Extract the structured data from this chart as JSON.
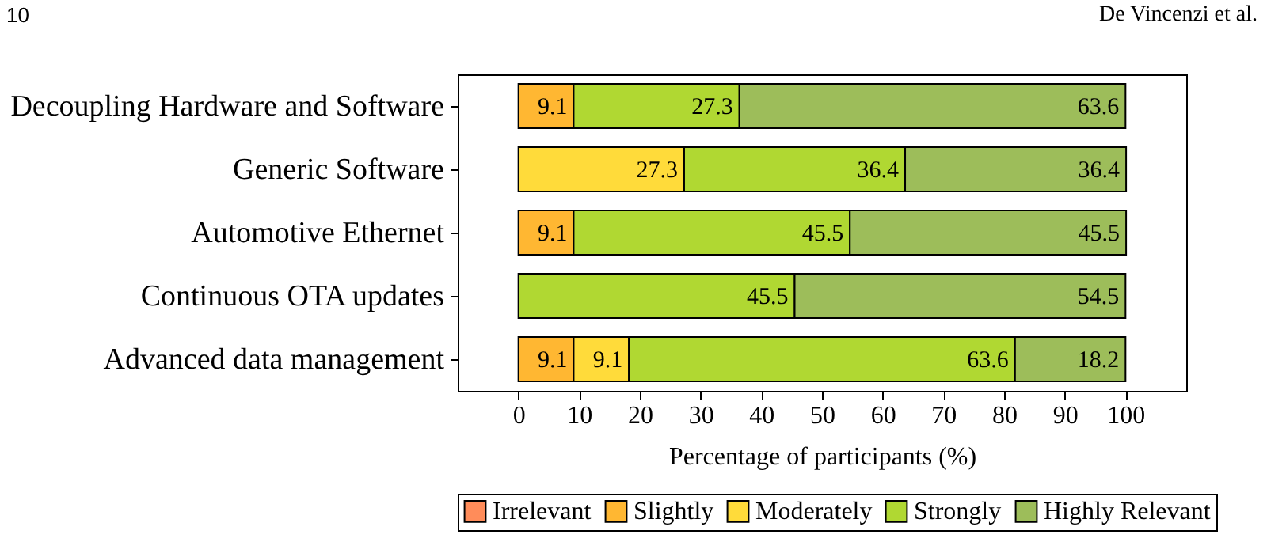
{
  "chart_data": {
    "type": "bar",
    "orientation": "horizontal",
    "stacked": true,
    "categories": [
      "Decoupling Hardware and Software",
      "Generic Software",
      "Automotive Ethernet",
      "Continuous OTA updates",
      "Advanced data management"
    ],
    "series": [
      {
        "name": "Irrelevant",
        "color": "#ff8c5a",
        "values": [
          null,
          null,
          null,
          null,
          null
        ],
        "value_labels": [
          null,
          null,
          null,
          null,
          null
        ]
      },
      {
        "name": "Slightly",
        "color": "#ffb732",
        "values": [
          9.1,
          null,
          9.1,
          null,
          9.1
        ],
        "value_labels": [
          "9.1",
          null,
          "9.1",
          null,
          "9.1"
        ]
      },
      {
        "name": "Moderately",
        "color": "#ffdb3a",
        "values": [
          null,
          27.3,
          null,
          null,
          9.1
        ],
        "value_labels": [
          null,
          "27.3",
          null,
          null,
          "9.1"
        ]
      },
      {
        "name": "Strongly",
        "color": "#b0d832",
        "values": [
          27.3,
          36.4,
          45.5,
          45.5,
          63.6
        ],
        "value_labels": [
          "27.3",
          "36.4",
          "45.5",
          "45.5",
          "63.6"
        ]
      },
      {
        "name": "Highly Relevant",
        "color": "#9dbd5a",
        "values": [
          63.6,
          36.4,
          45.5,
          54.5,
          18.2
        ],
        "value_labels": [
          "63.6",
          "36.4",
          "45.5",
          "54.5",
          "18.2"
        ]
      }
    ],
    "xlabel": "Percentage of participants (%)",
    "xlim": [
      -10,
      110
    ],
    "xticks": [
      0,
      10,
      20,
      30,
      40,
      50,
      60,
      70,
      80,
      90,
      100
    ],
    "grid": false,
    "legend": "bottom",
    "annotations": [
      "10",
      "De Vincenzi et al."
    ]
  }
}
